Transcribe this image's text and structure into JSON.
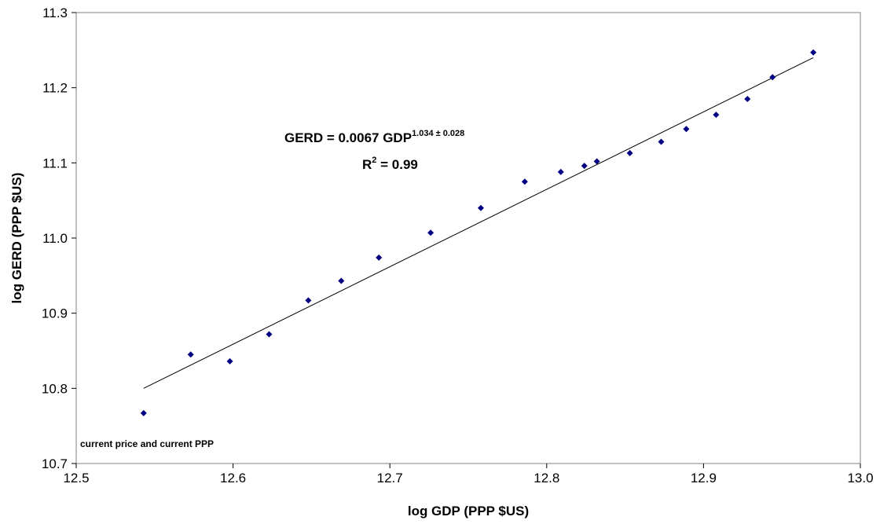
{
  "chart_data": {
    "type": "scatter",
    "title": "",
    "xlabel": "log GDP (PPP $US)",
    "ylabel": "log GERD (PPP $US)",
    "xlim": [
      12.5,
      13.0
    ],
    "ylim": [
      10.7,
      11.3
    ],
    "x_ticks": [
      "12.5",
      "12.6",
      "12.7",
      "12.8",
      "12.9",
      "13.0"
    ],
    "y_ticks": [
      "10.7",
      "10.8",
      "10.9",
      "11.0",
      "11.1",
      "11.2",
      "11.3"
    ],
    "grid": false,
    "marker_color": "#000080",
    "points": [
      {
        "x": 12.543,
        "y": 10.767
      },
      {
        "x": 12.573,
        "y": 10.845
      },
      {
        "x": 12.598,
        "y": 10.836
      },
      {
        "x": 12.623,
        "y": 10.872
      },
      {
        "x": 12.648,
        "y": 10.917
      },
      {
        "x": 12.669,
        "y": 10.943
      },
      {
        "x": 12.693,
        "y": 10.974
      },
      {
        "x": 12.726,
        "y": 11.007
      },
      {
        "x": 12.758,
        "y": 11.04
      },
      {
        "x": 12.786,
        "y": 11.075
      },
      {
        "x": 12.809,
        "y": 11.088
      },
      {
        "x": 12.824,
        "y": 11.096
      },
      {
        "x": 12.832,
        "y": 11.102
      },
      {
        "x": 12.853,
        "y": 11.113
      },
      {
        "x": 12.873,
        "y": 11.128
      },
      {
        "x": 12.889,
        "y": 11.145
      },
      {
        "x": 12.908,
        "y": 11.164
      },
      {
        "x": 12.928,
        "y": 11.185
      },
      {
        "x": 12.944,
        "y": 11.214
      },
      {
        "x": 12.97,
        "y": 11.247
      }
    ],
    "trendline": {
      "color": "#000000",
      "from": {
        "x": 12.543,
        "y": 10.8
      },
      "to": {
        "x": 12.97,
        "y": 11.24
      }
    },
    "annotations": {
      "equation_main": "GERD =  0.0067 GDP",
      "equation_exponent": "1.034 ± 0.028",
      "r2_prefix": "R",
      "r2_sup": "2",
      "r2_suffix": " = 0.99",
      "note": "current price and current PPP"
    }
  }
}
